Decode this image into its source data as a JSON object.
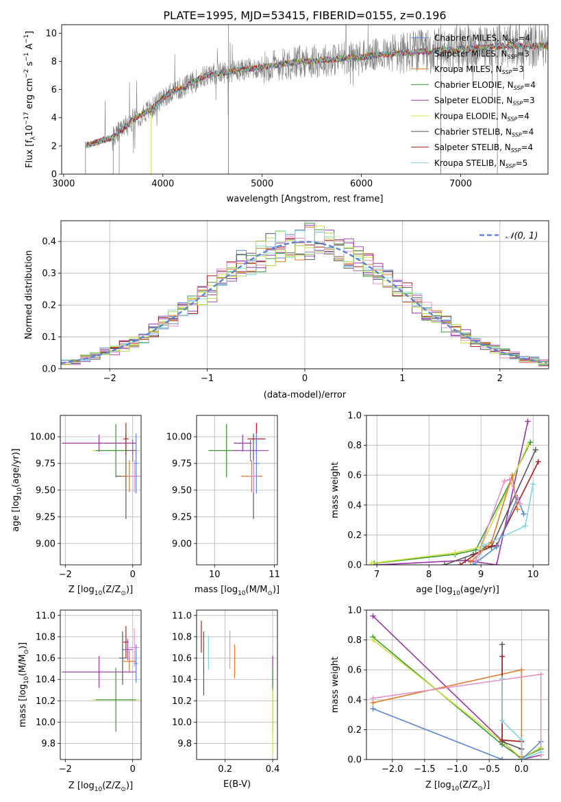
{
  "colors": {
    "chabrier_miles": "#5b85d9",
    "salpeter_miles": "#9a4fbf",
    "kroupa_miles": "#e07b25",
    "chabrier_elodie": "#3a9a3a",
    "salpeter_elodie": "#9b30a8",
    "kroupa_elodie": "#cfe03a",
    "chabrier_stelib": "#555555",
    "salpeter_stelib": "#b01c1c",
    "kroupa_stelib": "#7fd6e0",
    "extra_pink": "#e58fc8",
    "extra_lime": "#a8d848",
    "spectrum_data": "#7f7f7f",
    "normal_curve": "#5b85d9"
  },
  "chart_data": [
    {
      "id": "spectrum",
      "type": "line",
      "title": "PLATE=1995, MJD=53415, FIBERID=0155, z=0.196",
      "xlabel": "wavelength [Angstrom, rest frame]",
      "ylabel_main": "Flux [f",
      "ylabel_sub": "λ",
      "ylabel_rest": "10",
      "ylabel_exp1": "−17",
      "ylabel_mid": " erg cm",
      "ylabel_exp2": "−2",
      "ylabel_mid2": " s",
      "ylabel_exp3": "−1",
      "ylabel_tail": " A",
      "ylabel_exp4": "−1",
      "ylabel_end": "]",
      "xlim": [
        2980,
        7880
      ],
      "ylim": [
        0,
        10.6
      ],
      "xticks": [
        3000,
        4000,
        5000,
        6000,
        7000
      ],
      "yticks": [
        0,
        2,
        4,
        6,
        8,
        10
      ],
      "continuum": {
        "x": [
          3220,
          3300,
          3400,
          3500,
          3600,
          3700,
          3800,
          3900,
          4000,
          4100,
          4200,
          4300,
          4400,
          4500,
          4600,
          4700,
          4800,
          4900,
          5000,
          5100,
          5200,
          5300,
          5400,
          5500,
          5600,
          5700,
          5800,
          5900,
          6000,
          6100,
          6200,
          6300,
          6400,
          6500,
          6600,
          6700,
          6800,
          6900,
          7000,
          7100,
          7200,
          7300,
          7400
        ],
        "y": [
          2.0,
          2.2,
          2.4,
          2.6,
          3.2,
          3.9,
          4.3,
          4.7,
          5.4,
          5.9,
          6.1,
          6.5,
          6.9,
          7.1,
          7.2,
          7.3,
          7.4,
          7.5,
          7.6,
          7.7,
          7.8,
          7.9,
          8.0,
          8.0,
          8.1,
          8.1,
          8.2,
          8.3,
          8.3,
          8.4,
          8.5,
          8.5,
          8.6,
          8.6,
          8.7,
          8.7,
          8.8,
          8.8,
          8.9,
          8.9,
          9.0,
          9.0,
          9.1
        ]
      },
      "legend": [
        {
          "label": "Chabrier MILES, N",
          "sub": "SSP",
          "tail": "=4",
          "color_key": "chabrier_miles"
        },
        {
          "label": "Salpeter MILES, N",
          "sub": "SSP",
          "tail": "=3",
          "color_key": "salpeter_miles"
        },
        {
          "label": "Kroupa MILES, N",
          "sub": "SSP",
          "tail": "=3",
          "color_key": "kroupa_miles"
        },
        {
          "label": "Chabrier ELODIE, N",
          "sub": "SSP",
          "tail": "=4",
          "color_key": "chabrier_elodie"
        },
        {
          "label": "Salpeter ELODIE, N",
          "sub": "SSP",
          "tail": "=3",
          "color_key": "salpeter_elodie"
        },
        {
          "label": "Kroupa ELODIE, N",
          "sub": "SSP",
          "tail": "=4",
          "color_key": "kroupa_elodie"
        },
        {
          "label": "Chabrier STELIB, N",
          "sub": "SSP",
          "tail": "=4",
          "color_key": "chabrier_stelib"
        },
        {
          "label": "Salpeter STELIB, N",
          "sub": "SSP",
          "tail": "=4",
          "color_key": "salpeter_stelib"
        },
        {
          "label": "Kroupa STELIB, N",
          "sub": "SSP",
          "tail": "=5",
          "color_key": "kroupa_stelib"
        }
      ]
    },
    {
      "id": "residuals",
      "type": "area",
      "xlabel": "(data-model)/error",
      "ylabel": "Normed distribution",
      "xlim": [
        -2.5,
        2.5
      ],
      "ylim": [
        0,
        0.465
      ],
      "xticks": [
        -2,
        -1,
        0,
        1,
        2
      ],
      "yticks": [
        0.0,
        0.1,
        0.2,
        0.3,
        0.4
      ],
      "legend_label": "𝒩(0, 1)",
      "bin_width": 0.1,
      "grid": true
    },
    {
      "id": "z_age",
      "type": "scatter",
      "xlabel": "Z [log",
      "xlabel_sub": "10",
      "xlabel_tail": "(Z/Z",
      "xlabel_sub2": "⊙",
      "xlabel_end": ")]",
      "ylabel": "age  [log",
      "ylabel_sub": "10",
      "ylabel_tail": "(age/yr)]",
      "xlim": [
        -2.15,
        0.25
      ],
      "ylim": [
        8.8,
        10.2
      ],
      "xticks": [
        -2,
        0
      ],
      "yticks": [
        9.0,
        9.25,
        9.5,
        9.75,
        10.0
      ],
      "ytick_labels": [
        "9.00",
        "9.25",
        "9.50",
        "9.75",
        "10.00"
      ],
      "points": [
        {
          "x": -1.0,
          "y": 9.94,
          "xe": 1.1,
          "ye": 0.08,
          "c": "salpeter_elodie"
        },
        {
          "x": -0.5,
          "y": 9.87,
          "xe": 0.7,
          "ye": 0.25,
          "c": "kroupa_elodie"
        },
        {
          "x": -0.5,
          "y": 9.87,
          "xe": 0.6,
          "ye": 0.25,
          "c": "chabrier_elodie"
        },
        {
          "x": -0.2,
          "y": 9.63,
          "xe": 0.3,
          "ye": 0.4,
          "c": "chabrier_stelib"
        },
        {
          "x": -0.2,
          "y": 9.98,
          "xe": 0.08,
          "ye": 0.15,
          "c": "salpeter_stelib"
        },
        {
          "x": -0.1,
          "y": 9.63,
          "xe": 0.25,
          "ye": 0.15,
          "c": "kroupa_miles"
        },
        {
          "x": 0.0,
          "y": 9.87,
          "xe": 0.1,
          "ye": 0.1,
          "c": "salpeter_miles"
        },
        {
          "x": 0.05,
          "y": 9.63,
          "xe": 0.2,
          "ye": 0.15,
          "c": "extra_pink"
        },
        {
          "x": 0.1,
          "y": 9.75,
          "xe": 0.05,
          "ye": 0.28,
          "c": "chabrier_miles"
        }
      ]
    },
    {
      "id": "mass_age",
      "type": "scatter",
      "xlabel": "mass [log",
      "xlabel_sub": "10",
      "xlabel_tail": "(M/M",
      "xlabel_sub2": "⊙",
      "xlabel_end": ")]",
      "xlim": [
        9.7,
        11.05
      ],
      "ylim": [
        8.8,
        10.2
      ],
      "xticks": [
        10,
        11
      ],
      "yticks": [
        9.0,
        9.25,
        9.5,
        9.75,
        10.0
      ],
      "ytick_labels": [
        "9.00",
        "9.25",
        "9.50",
        "9.75",
        "10.00"
      ],
      "points": [
        {
          "x": 10.2,
          "y": 9.87,
          "xe": 0.3,
          "ye": 0.25,
          "c": "kroupa_elodie"
        },
        {
          "x": 10.2,
          "y": 9.87,
          "xe": 0.3,
          "ye": 0.25,
          "c": "chabrier_elodie"
        },
        {
          "x": 10.47,
          "y": 9.94,
          "xe": 0.15,
          "ye": 0.08,
          "c": "salpeter_elodie"
        },
        {
          "x": 10.6,
          "y": 9.87,
          "xe": 0.3,
          "ye": 0.1,
          "c": "salpeter_miles"
        },
        {
          "x": 10.65,
          "y": 9.63,
          "xe": 0.12,
          "ye": 0.4,
          "c": "chabrier_stelib"
        },
        {
          "x": 10.7,
          "y": 9.98,
          "xe": 0.15,
          "ye": 0.15,
          "c": "salpeter_stelib"
        },
        {
          "x": 10.62,
          "y": 9.63,
          "xe": 0.18,
          "ye": 0.15,
          "c": "kroupa_miles"
        },
        {
          "x": 10.65,
          "y": 9.63,
          "xe": 0.1,
          "ye": 0.15,
          "c": "extra_pink"
        },
        {
          "x": 10.7,
          "y": 9.75,
          "xe": 0.05,
          "ye": 0.28,
          "c": "chabrier_miles"
        }
      ]
    },
    {
      "id": "age_weight",
      "type": "line",
      "xlabel": "age  [log",
      "xlabel_sub": "10",
      "xlabel_tail": "(age/yr)]",
      "ylabel": "mass weight",
      "xlim": [
        6.8,
        10.3
      ],
      "ylim": [
        0,
        1.0
      ],
      "xticks": [
        7,
        8,
        9,
        10
      ],
      "yticks": [
        0.0,
        0.2,
        0.4,
        0.6,
        0.8,
        1.0
      ],
      "series": [
        {
          "c": "salpeter_elodie",
          "x": [
            7.0,
            8.7,
            9.3,
            9.9
          ],
          "y": [
            0.0,
            0.03,
            0.0,
            0.96
          ]
        },
        {
          "c": "chabrier_elodie",
          "x": [
            6.95,
            8.5,
            8.9,
            9.95
          ],
          "y": [
            0.01,
            0.07,
            0.1,
            0.82
          ]
        },
        {
          "c": "kroupa_elodie",
          "x": [
            6.9,
            8.5,
            9.0,
            9.9
          ],
          "y": [
            0.01,
            0.08,
            0.12,
            0.8
          ]
        },
        {
          "c": "chabrier_stelib",
          "x": [
            8.3,
            8.85,
            9.2,
            10.05
          ],
          "y": [
            0.0,
            0.07,
            0.12,
            0.77
          ]
        },
        {
          "c": "salpeter_stelib",
          "x": [
            8.6,
            9.1,
            9.3,
            10.1
          ],
          "y": [
            0.0,
            0.12,
            0.13,
            0.69
          ]
        },
        {
          "c": "kroupa_stelib",
          "x": [
            8.9,
            9.05,
            9.85,
            10.0
          ],
          "y": [
            0.0,
            0.13,
            0.26,
            0.54
          ]
        },
        {
          "c": "kroupa_miles",
          "x": [
            8.8,
            9.2,
            9.6,
            9.7
          ],
          "y": [
            0.02,
            0.15,
            0.6,
            0.37
          ]
        },
        {
          "c": "chabrier_miles",
          "x": [
            8.85,
            9.3,
            9.7,
            9.82
          ],
          "y": [
            0.0,
            0.12,
            0.45,
            0.34
          ]
        },
        {
          "c": "extra_pink",
          "x": [
            8.9,
            9.45,
            9.55,
            9.75
          ],
          "y": [
            0.03,
            0.56,
            0.57,
            0.41
          ]
        }
      ]
    },
    {
      "id": "z_mass",
      "type": "scatter",
      "xlabel": "Z [log",
      "xlabel_sub": "10",
      "xlabel_tail": "(Z/Z",
      "xlabel_sub2": "⊙",
      "xlabel_end": ")]",
      "ylabel": "mass [log",
      "ylabel_sub": "10",
      "ylabel_tail": "(M/M",
      "ylabel_sub2": "⊙",
      "ylabel_end": ")]",
      "xlim": [
        -2.15,
        0.25
      ],
      "ylim": [
        9.65,
        11.05
      ],
      "xticks": [
        -2,
        0
      ],
      "yticks": [
        9.8,
        10.0,
        10.2,
        10.4,
        10.6,
        10.8,
        11.0
      ],
      "ytick_labels": [
        "9.8",
        "10.0",
        "10.2",
        "10.4",
        "10.6",
        "10.8",
        "11.0"
      ],
      "points": [
        {
          "x": -1.0,
          "y": 10.47,
          "xe": 1.1,
          "ye": 0.15,
          "c": "salpeter_elodie"
        },
        {
          "x": -0.5,
          "y": 10.21,
          "xe": 0.7,
          "ye": 0.28,
          "c": "kroupa_elodie"
        },
        {
          "x": -0.5,
          "y": 10.21,
          "xe": 0.6,
          "ye": 0.3,
          "c": "chabrier_elodie"
        },
        {
          "x": -0.3,
          "y": 10.6,
          "xe": 0.1,
          "ye": 0.25,
          "c": "chabrier_stelib"
        },
        {
          "x": -0.2,
          "y": 10.75,
          "xe": 0.08,
          "ye": 0.15,
          "c": "salpeter_stelib"
        },
        {
          "x": -0.1,
          "y": 10.57,
          "xe": 0.2,
          "ye": 0.1,
          "c": "kroupa_miles"
        },
        {
          "x": -0.15,
          "y": 10.68,
          "xe": 0.15,
          "ye": 0.1,
          "c": "salpeter_miles"
        },
        {
          "x": 0.05,
          "y": 10.7,
          "xe": 0.15,
          "ye": 0.18,
          "c": "extra_pink"
        },
        {
          "x": 0.1,
          "y": 10.55,
          "xe": 0.05,
          "ye": 0.18,
          "c": "chabrier_miles"
        }
      ]
    },
    {
      "id": "ebv_mass",
      "type": "scatter",
      "xlabel": "E(B-V)",
      "xlim": [
        0.08,
        0.42
      ],
      "ylim": [
        9.65,
        11.05
      ],
      "xticks": [
        0.2,
        0.4
      ],
      "yticks": [
        9.8,
        10.0,
        10.2,
        10.4,
        10.6,
        10.8,
        11.0
      ],
      "ytick_labels": [
        "9.8",
        "10.0",
        "10.2",
        "10.4",
        "10.6",
        "10.8",
        "11.0"
      ],
      "points": [
        {
          "x": 0.1,
          "y": 10.8,
          "ye": 0.15,
          "c": "salpeter_stelib"
        },
        {
          "x": 0.11,
          "y": 10.55,
          "ye": 0.3,
          "c": "chabrier_stelib"
        },
        {
          "x": 0.13,
          "y": 10.65,
          "ye": 0.16,
          "c": "kroupa_stelib"
        },
        {
          "x": 0.22,
          "y": 10.68,
          "ye": 0.18,
          "c": "extra_pink"
        },
        {
          "x": 0.24,
          "y": 10.57,
          "ye": 0.16,
          "c": "kroupa_miles"
        },
        {
          "x": 0.4,
          "y": 10.47,
          "ye": 0.15,
          "c": "salpeter_elodie"
        },
        {
          "x": 0.4,
          "y": 10.21,
          "ye": 0.3,
          "c": "chabrier_elodie"
        },
        {
          "x": 0.4,
          "y": 10.0,
          "ye": 0.3,
          "c": "kroupa_elodie"
        }
      ]
    },
    {
      "id": "z_weight",
      "type": "line",
      "xlabel": "Z [log",
      "xlabel_sub": "10",
      "xlabel_tail": "(Z/Z",
      "xlabel_sub2": "⊙",
      "xlabel_end": ")]",
      "ylabel": "mass weight",
      "xlim": [
        -2.4,
        0.42
      ],
      "ylim": [
        0,
        1.0
      ],
      "xticks": [
        -2.0,
        -1.5,
        -1.0,
        -0.5,
        0.0
      ],
      "xtick_labels": [
        "−2.0",
        "−1.5",
        "−1.0",
        "−0.5",
        "0.0"
      ],
      "yticks": [
        0.0,
        0.2,
        0.4,
        0.6,
        0.8,
        1.0
      ],
      "series": [
        {
          "c": "salpeter_elodie",
          "x": [
            -2.3,
            0.0,
            0.3
          ],
          "y": [
            0.96,
            0.0,
            0.03
          ]
        },
        {
          "c": "chabrier_elodie",
          "x": [
            -2.3,
            -0.3,
            0.0,
            0.3
          ],
          "y": [
            0.82,
            0.1,
            0.01,
            0.07
          ]
        },
        {
          "c": "kroupa_elodie",
          "x": [
            -2.3,
            -0.3,
            0.0,
            0.3
          ],
          "y": [
            0.8,
            0.12,
            0.01,
            0.08
          ]
        },
        {
          "c": "chabrier_miles",
          "x": [
            -2.3,
            -0.3,
            0.0,
            0.3
          ],
          "y": [
            0.34,
            0.0,
            0.0,
            0.12
          ]
        },
        {
          "c": "kroupa_miles",
          "x": [
            -2.3,
            0.0,
            0.0
          ],
          "y": [
            0.38,
            0.6,
            0.02
          ]
        },
        {
          "c": "extra_pink",
          "x": [
            -2.3,
            0.3,
            0.3
          ],
          "y": [
            0.41,
            0.57,
            0.03
          ]
        },
        {
          "c": "chabrier_stelib",
          "x": [
            -0.3,
            -0.3,
            0.0,
            0.0
          ],
          "y": [
            0.77,
            0.12,
            0.07,
            0.0
          ]
        },
        {
          "c": "salpeter_stelib",
          "x": [
            -0.3,
            -0.3,
            0.0,
            0.0
          ],
          "y": [
            0.69,
            0.13,
            0.12,
            0.0
          ]
        },
        {
          "c": "kroupa_stelib",
          "x": [
            -0.3,
            -0.3,
            0.0,
            0.0,
            0.3
          ],
          "y": [
            0.54,
            0.26,
            0.13,
            0.0,
            0.05
          ]
        }
      ]
    }
  ]
}
